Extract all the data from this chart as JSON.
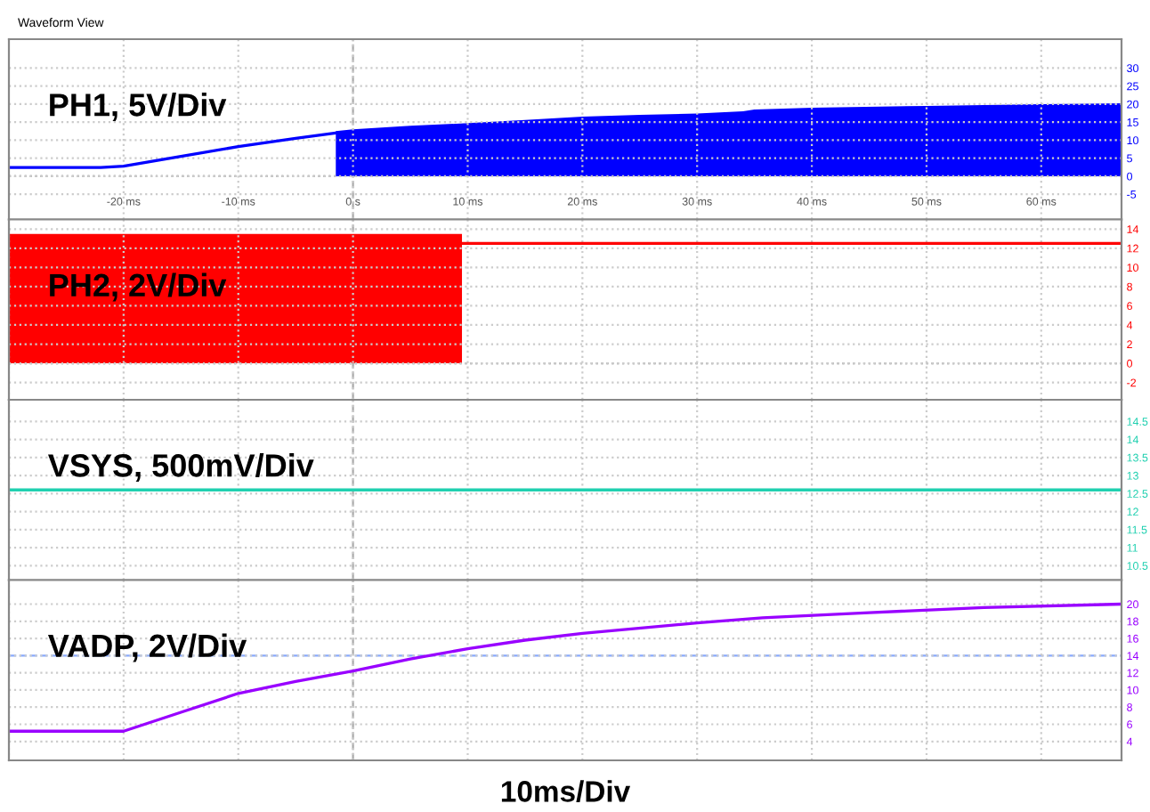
{
  "chart_data": [
    {
      "type": "line",
      "title": "PH1, 5V/Div",
      "annotations": [
        "Waveform View"
      ],
      "xlim": [
        -30,
        67
      ],
      "ylim": [
        -12,
        38
      ],
      "xticks": [
        {
          "value": -20,
          "label": "-20 ms"
        },
        {
          "value": -10,
          "label": "-10 ms"
        },
        {
          "value": 0,
          "label": "0 s"
        },
        {
          "value": 10,
          "label": "10 ms"
        },
        {
          "value": 20,
          "label": "20 ms"
        },
        {
          "value": 30,
          "label": "30 ms"
        },
        {
          "value": 40,
          "label": "40 ms"
        },
        {
          "value": 50,
          "label": "50 ms"
        },
        {
          "value": 60,
          "label": "60 ms"
        }
      ],
      "yticks": [
        -5,
        0,
        5,
        10,
        15,
        20,
        25,
        30
      ],
      "grid": true,
      "ref_lines": [
        {
          "axis": "y",
          "value": 0,
          "color": "#888888",
          "line_style": "dotted"
        },
        {
          "axis": "x",
          "value": 0,
          "color": "#aaaaaa",
          "line_style": "dashed"
        }
      ],
      "series": [
        {
          "color": "#0000ff",
          "x": [
            -30,
            -22,
            -20,
            -15,
            -10,
            -5,
            -1.5
          ],
          "values": [
            2.4,
            2.4,
            2.8,
            5.5,
            8.2,
            10.5,
            12
          ]
        },
        {
          "type": "area",
          "color": "#0000ff",
          "x": [
            -1.5,
            0,
            5,
            10,
            15,
            20,
            25,
            30,
            34,
            35,
            40,
            50,
            60,
            67
          ],
          "values": [
            12.5,
            13,
            14,
            14.7,
            15.6,
            16.5,
            17,
            17.4,
            18,
            18.5,
            19,
            19.5,
            20,
            20.2
          ]
        }
      ]
    },
    {
      "type": "line",
      "title": "PH2, 2V/Div",
      "xlim": [
        -30,
        67
      ],
      "ylim": [
        -3.8,
        15
      ],
      "tick_labels": "y",
      "yticks": [
        -2,
        0,
        2,
        4,
        6,
        8,
        10,
        12,
        14
      ],
      "grid": true,
      "ref_lines": [
        {
          "axis": "y",
          "value": 0,
          "color": "#888888",
          "line_style": "dotted"
        },
        {
          "axis": "x",
          "value": 0,
          "color": "#aaaaaa",
          "line_style": "dashed"
        }
      ],
      "series": [
        {
          "type": "area",
          "color": "#ff0000",
          "x": [
            -30,
            9.5
          ],
          "values": [
            13.5,
            13.5
          ]
        },
        {
          "color": "#ff0000",
          "x": [
            9.5,
            67
          ],
          "values": [
            12.5,
            12.5
          ]
        }
      ]
    },
    {
      "type": "line",
      "title": "VSYS, 500mV/Div",
      "xlim": [
        -30,
        67
      ],
      "ylim": [
        10.1,
        15.1
      ],
      "tick_labels": "y",
      "yticks": [
        10.5,
        11,
        11.5,
        12,
        12.5,
        13,
        13.5,
        14,
        14.5
      ],
      "grid": true,
      "ref_lines": [
        {
          "axis": "x",
          "value": 0,
          "color": "#aaaaaa",
          "line_style": "dashed"
        }
      ],
      "series": [
        {
          "color": "#20d0b0",
          "x": [
            -30,
            67
          ],
          "values": [
            12.6,
            12.6
          ]
        }
      ]
    },
    {
      "type": "line",
      "title": "VADP, 2V/Div",
      "xlabel": "10ms/Div",
      "xlim": [
        -30,
        67
      ],
      "ylim": [
        1.8,
        22.8
      ],
      "tick_labels": "y",
      "yticks": [
        4,
        6,
        8,
        10,
        12,
        14,
        16,
        18,
        20
      ],
      "grid": true,
      "ref_lines": [
        {
          "axis": "y",
          "value": 14,
          "color": "#88aaff",
          "line_style": "dashed"
        },
        {
          "axis": "x",
          "value": 0,
          "color": "#aaaaaa",
          "line_style": "dashed"
        }
      ],
      "series": [
        {
          "color": "#9900ff",
          "x": [
            -30,
            -20,
            -15,
            -10,
            -5,
            0,
            5,
            10,
            15,
            20,
            30,
            35.7,
            45,
            55,
            67
          ],
          "values": [
            5.2,
            5.2,
            7.4,
            9.6,
            11,
            12.2,
            13.6,
            14.8,
            15.8,
            16.6,
            17.8,
            18.4,
            19,
            19.6,
            20
          ]
        }
      ]
    }
  ]
}
